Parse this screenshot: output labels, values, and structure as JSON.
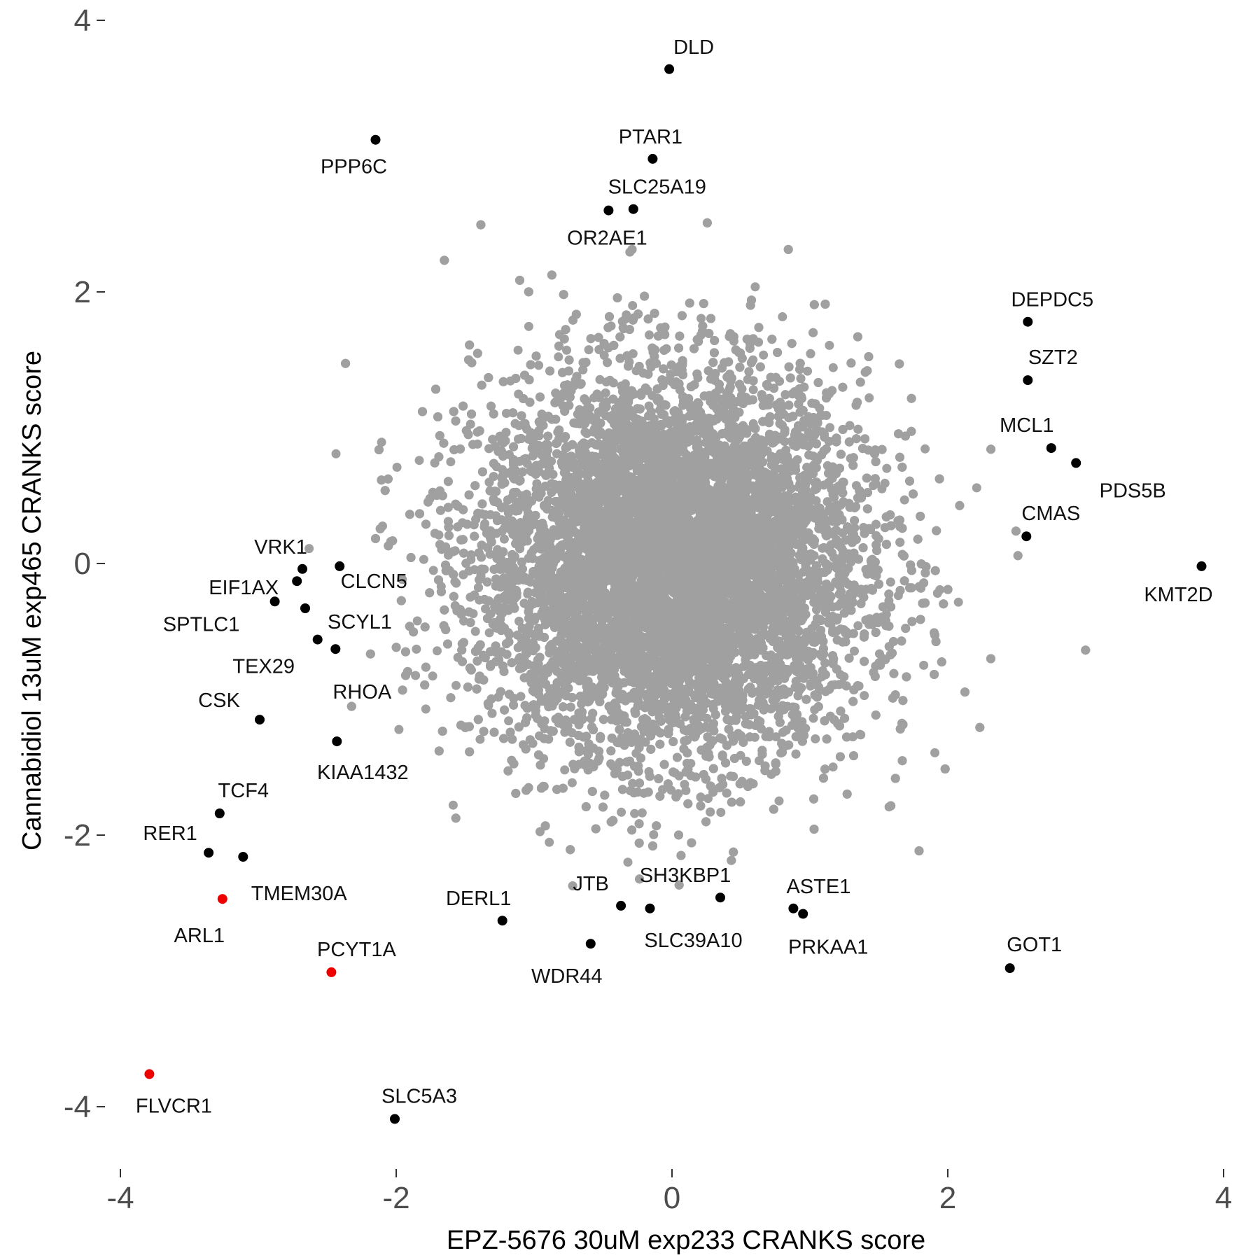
{
  "chart_data": {
    "type": "scatter",
    "title": "",
    "xlabel": "EPZ-5676 30uM exp233 CRANKS score",
    "ylabel": "Cannabidiol 13uM exp465 CRANKS score",
    "xlim": [
      -4.0,
      4.0
    ],
    "ylim": [
      -4.4,
      4.1
    ],
    "xticks": [
      -4,
      -2,
      0,
      2,
      4
    ],
    "yticks": [
      -4,
      -2,
      0,
      2,
      4
    ],
    "xtick_labels": [
      "-4",
      "-2",
      "0",
      "2",
      "4"
    ],
    "ytick_labels": [
      "-4",
      "-2",
      "0",
      "2",
      "4"
    ],
    "grid": false,
    "legend": "none",
    "background_cloud": {
      "color": "#a0a0a0",
      "description_count": 18000,
      "x_sd": 0.7,
      "y_sd": 0.7
    },
    "colors": {
      "background": "#a0a0a0",
      "highlight": "#000000",
      "red": "#ee0000"
    },
    "highlighted": [
      {
        "label": "DLD",
        "x": -0.02,
        "y": 3.64,
        "color": "#000000"
      },
      {
        "label": "PPP6C",
        "x": -2.15,
        "y": 3.12,
        "color": "#000000"
      },
      {
        "label": "PTAR1",
        "x": -0.14,
        "y": 2.98,
        "color": "#000000"
      },
      {
        "label": "SLC25A19",
        "x": -0.28,
        "y": 2.61,
        "color": "#000000"
      },
      {
        "label": "OR2AE1",
        "x": -0.46,
        "y": 2.6,
        "color": "#000000"
      },
      {
        "label": "DEPDC5",
        "x": 2.58,
        "y": 1.78,
        "color": "#000000"
      },
      {
        "label": "SZT2",
        "x": 2.58,
        "y": 1.35,
        "color": "#000000"
      },
      {
        "label": "MCL1",
        "x": 2.75,
        "y": 0.85,
        "color": "#000000"
      },
      {
        "label": "PDS5B",
        "x": 2.93,
        "y": 0.74,
        "color": "#000000"
      },
      {
        "label": "CMAS",
        "x": 2.57,
        "y": 0.2,
        "color": "#000000"
      },
      {
        "label": "KMT2D",
        "x": 3.84,
        "y": -0.02,
        "color": "#000000"
      },
      {
        "label": "VRK1",
        "x": -2.68,
        "y": -0.04,
        "color": "#000000"
      },
      {
        "label": "CLCN5",
        "x": -2.41,
        "y": -0.02,
        "color": "#000000"
      },
      {
        "label": "EIF1AX",
        "x": -2.72,
        "y": -0.13,
        "color": "#000000"
      },
      {
        "label": "SPTLC1",
        "x": -2.88,
        "y": -0.28,
        "color": "#000000"
      },
      {
        "label": "SCYL1",
        "x": -2.66,
        "y": -0.33,
        "color": "#000000"
      },
      {
        "label": "TEX29",
        "x": -2.57,
        "y": -0.56,
        "color": "#000000"
      },
      {
        "label": "RHOA",
        "x": -2.44,
        "y": -0.63,
        "color": "#000000"
      },
      {
        "label": "CSK",
        "x": -2.99,
        "y": -1.15,
        "color": "#000000"
      },
      {
        "label": "KIAA1432",
        "x": -2.43,
        "y": -1.31,
        "color": "#000000"
      },
      {
        "label": "TCF4",
        "x": -3.28,
        "y": -1.84,
        "color": "#000000"
      },
      {
        "label": "RER1",
        "x": -3.36,
        "y": -2.13,
        "color": "#000000"
      },
      {
        "label": "TMEM30A",
        "x": -3.11,
        "y": -2.16,
        "color": "#000000"
      },
      {
        "label": "ARL1",
        "x": -3.26,
        "y": -2.47,
        "color": "#ee0000"
      },
      {
        "label": "DERL1",
        "x": -1.23,
        "y": -2.63,
        "color": "#000000"
      },
      {
        "label": "JTB",
        "x": -0.37,
        "y": -2.52,
        "color": "#000000"
      },
      {
        "label": "SH3KBP1",
        "x": 0.35,
        "y": -2.46,
        "color": "#000000"
      },
      {
        "label": "SLC39A10",
        "x": -0.16,
        "y": -2.54,
        "color": "#000000"
      },
      {
        "label": "ASTE1",
        "x": 0.88,
        "y": -2.54,
        "color": "#000000"
      },
      {
        "label": "PRKAA1",
        "x": 0.95,
        "y": -2.58,
        "color": "#000000"
      },
      {
        "label": "WDR44",
        "x": -0.59,
        "y": -2.8,
        "color": "#000000"
      },
      {
        "label": "PCYT1A",
        "x": -2.47,
        "y": -3.01,
        "color": "#ee0000"
      },
      {
        "label": "GOT1",
        "x": 2.45,
        "y": -2.98,
        "color": "#000000"
      },
      {
        "label": "FLVCR1",
        "x": -3.79,
        "y": -3.76,
        "color": "#ee0000"
      },
      {
        "label": "SLC5A3",
        "x": -2.01,
        "y": -4.09,
        "color": "#000000"
      }
    ]
  }
}
